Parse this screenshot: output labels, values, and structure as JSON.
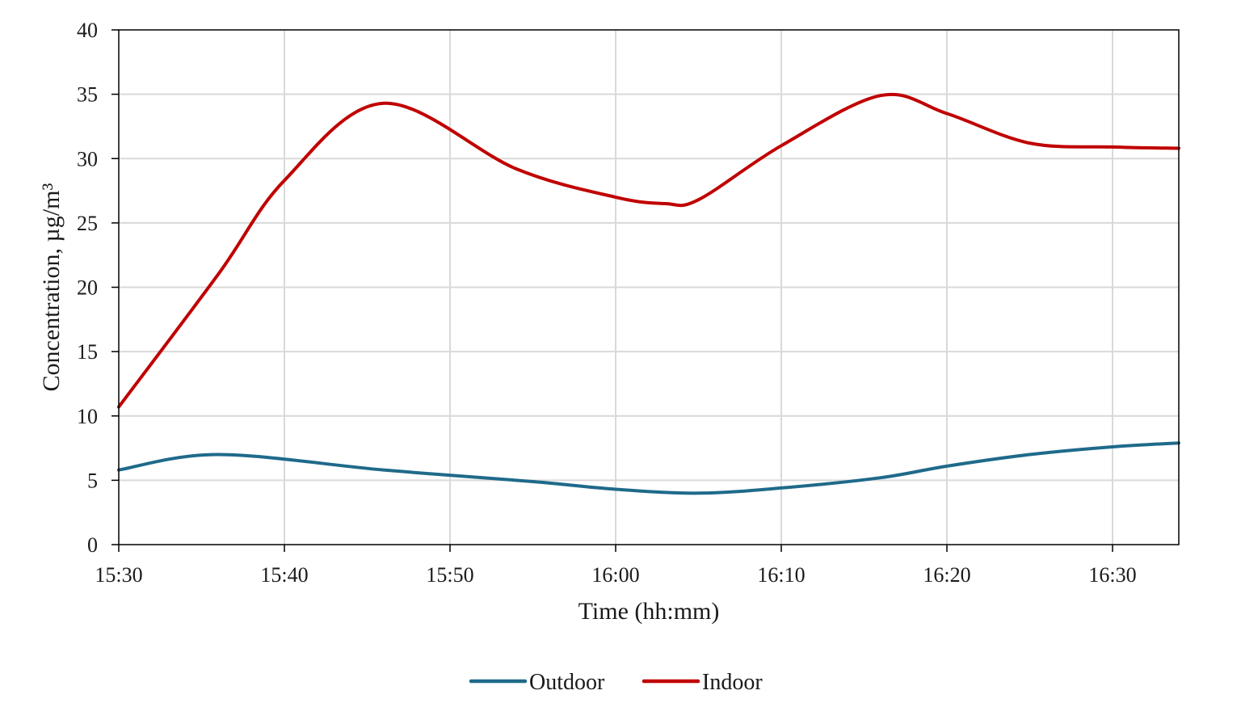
{
  "chart_data": {
    "type": "line",
    "title": "",
    "xlabel": "Time (hh:mm)",
    "ylabel": "Concentration, µg/m³",
    "x_ticks": [
      "15:30",
      "15:40",
      "15:50",
      "16:00",
      "16:10",
      "16:20",
      "16:30"
    ],
    "xlim_minutes_from_start": [
      0,
      64
    ],
    "ylim": [
      0,
      40
    ],
    "y_ticks": [
      0,
      5,
      10,
      15,
      20,
      25,
      30,
      35,
      40
    ],
    "grid": true,
    "legend_position": "bottom-center",
    "series": [
      {
        "name": "Outdoor",
        "color": "#1f6a8a",
        "x": [
          "15:30",
          "15:36",
          "15:46",
          "15:55",
          "16:00",
          "16:05",
          "16:10",
          "16:16",
          "16:20",
          "16:25",
          "16:30",
          "16:34"
        ],
        "y": [
          5.8,
          7.0,
          5.8,
          4.9,
          4.3,
          4.0,
          4.4,
          5.2,
          6.1,
          7.0,
          7.6,
          7.9
        ]
      },
      {
        "name": "Indoor",
        "color": "#c00000",
        "x": [
          "15:30",
          "15:36",
          "15:40",
          "15:46",
          "15:54",
          "16:00",
          "16:03",
          "16:05",
          "16:10",
          "16:16",
          "16:20",
          "16:25",
          "16:30",
          "16:34"
        ],
        "y": [
          10.7,
          21.0,
          28.3,
          34.3,
          29.2,
          27.0,
          26.5,
          26.8,
          31.0,
          34.9,
          33.5,
          31.2,
          30.9,
          30.8
        ]
      }
    ]
  }
}
